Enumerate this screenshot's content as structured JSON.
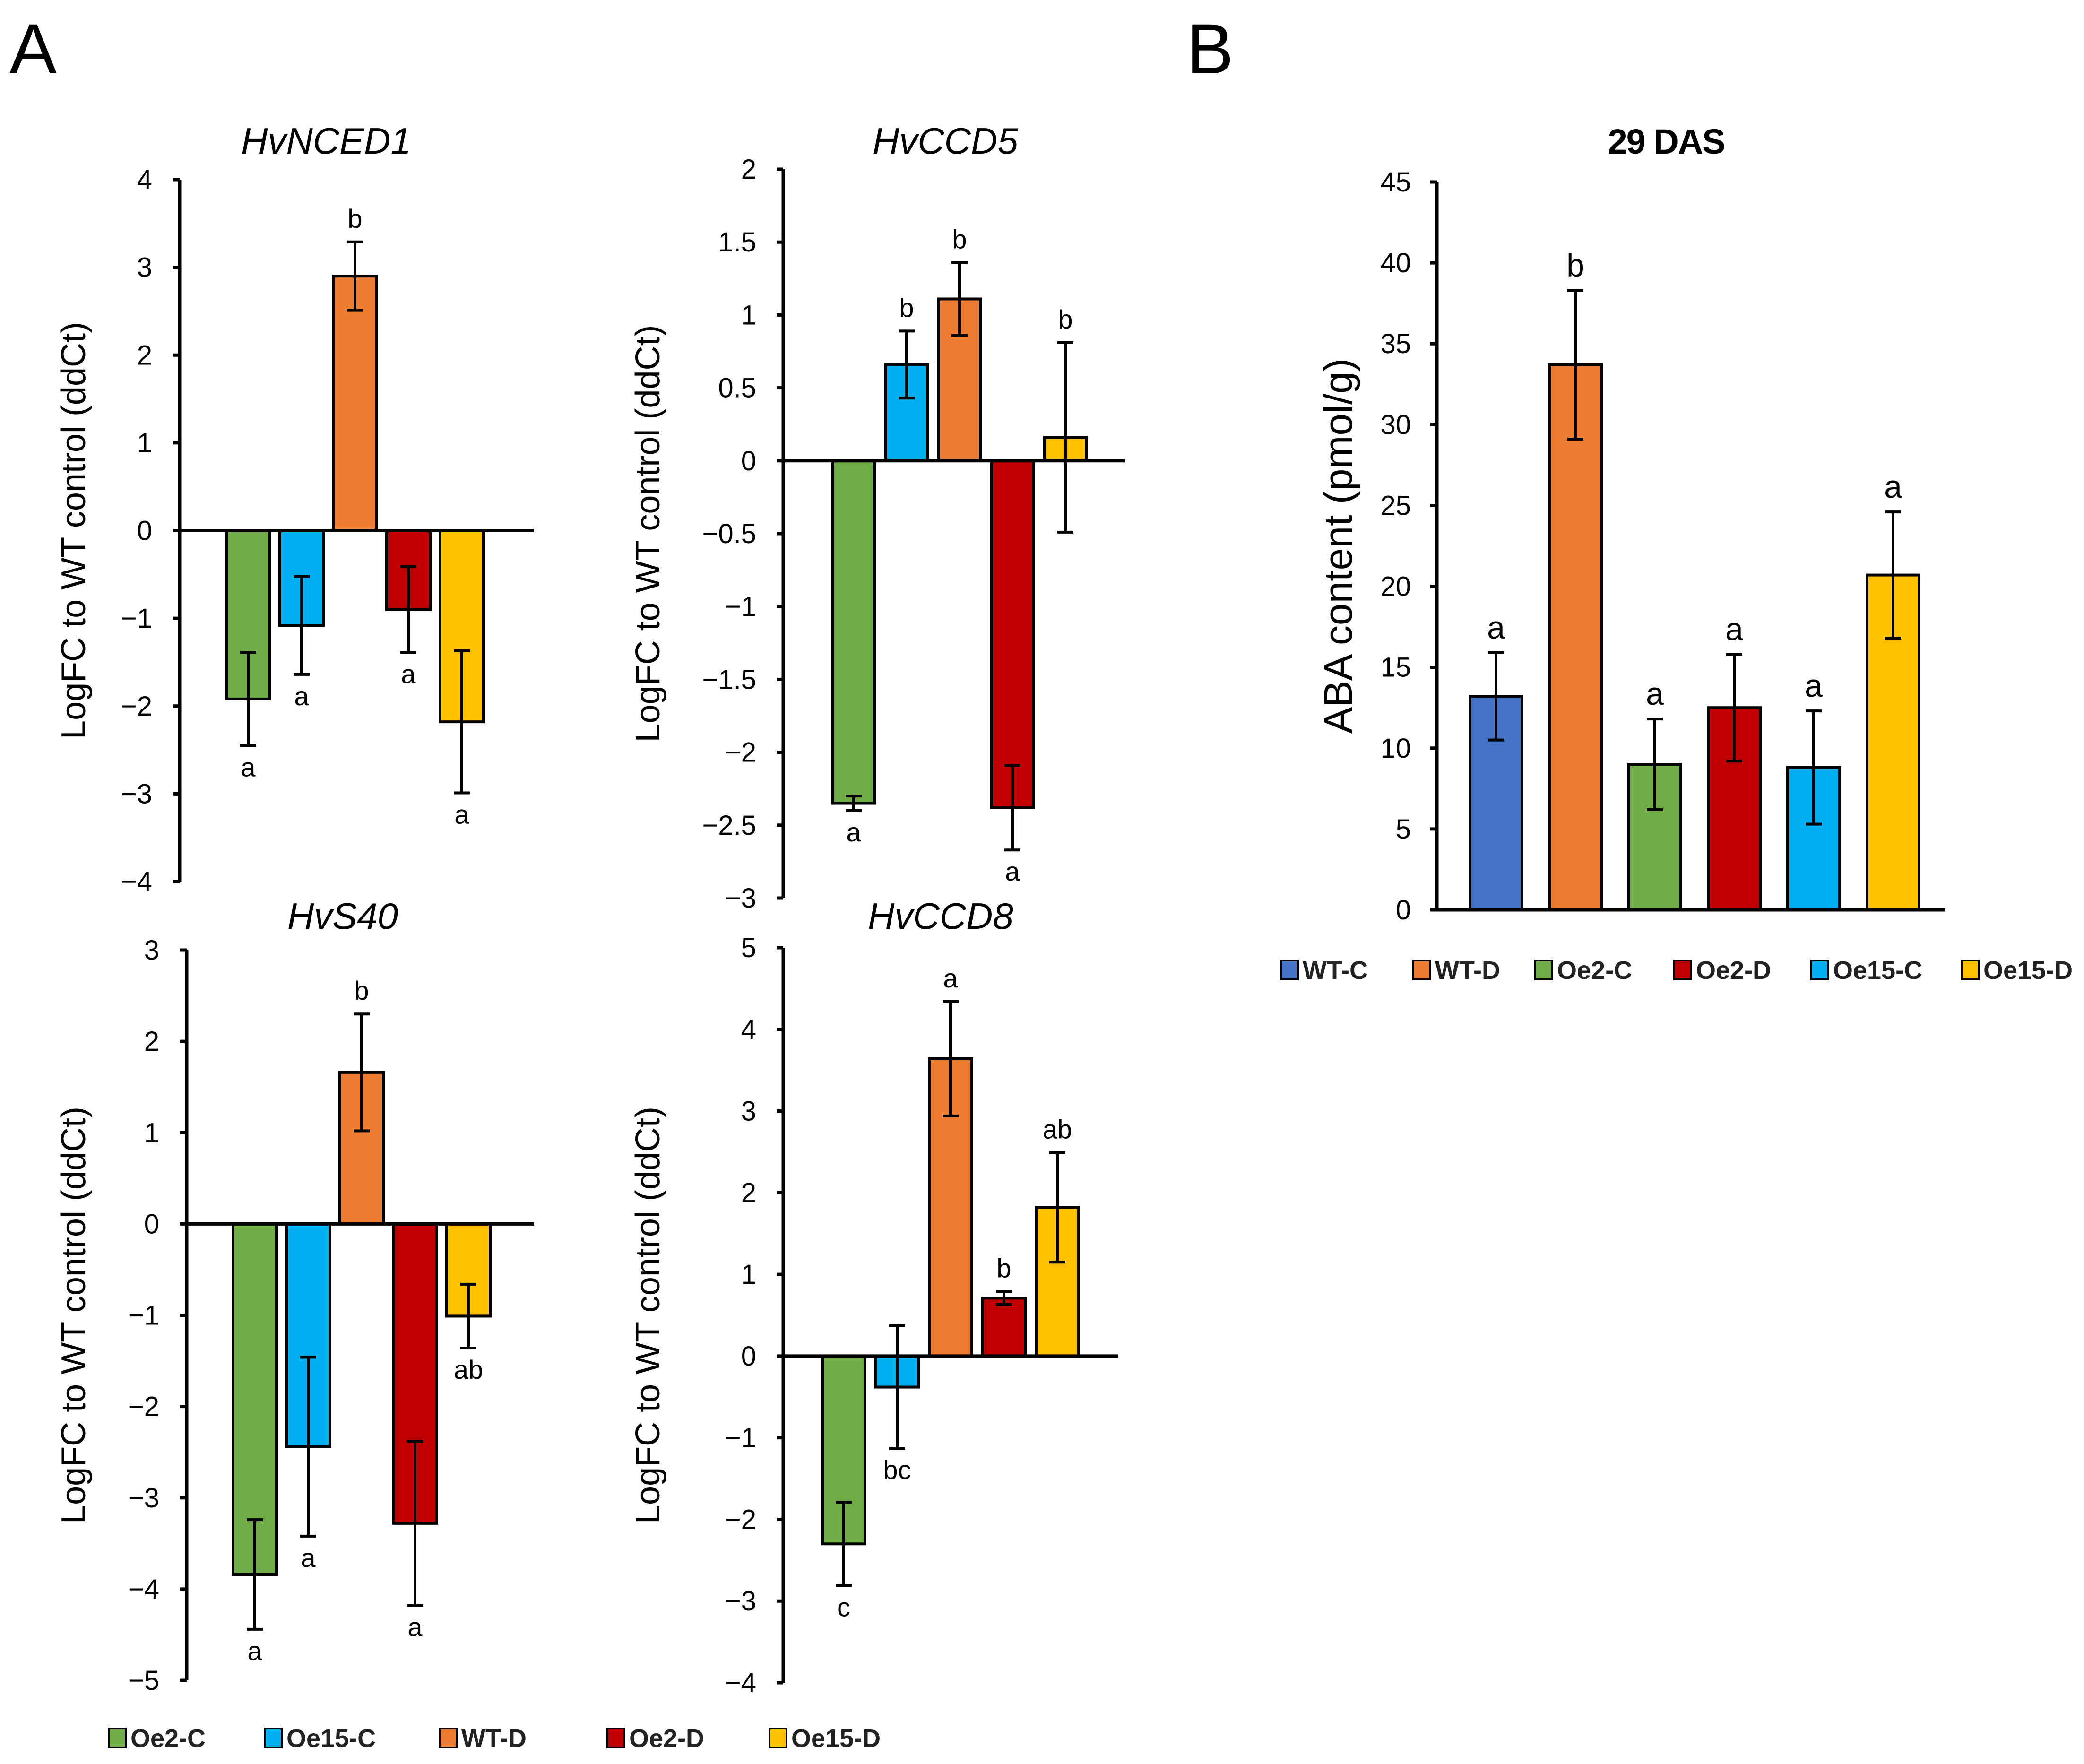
{
  "panels": {
    "a": "A",
    "b": "B"
  },
  "colors": {
    "WT-C": "#4472C4",
    "WT-D": "#ED7D31",
    "Oe2-C": "#70AD47",
    "Oe2-D": "#C00000",
    "Oe15-C": "#00B0F0",
    "Oe15-D": "#FFC000"
  },
  "legend_a": [
    "Oe2-C",
    "Oe15-C",
    "WT-D",
    "Oe2-D",
    "Oe15-D"
  ],
  "legend_b": [
    "WT-C",
    "WT-D",
    "Oe2-C",
    "Oe2-D",
    "Oe15-C",
    "Oe15-D"
  ],
  "chart_data": [
    {
      "type": "bar",
      "title": "HvNCED1",
      "ylabel": "LogFC to WT control (ddCt)",
      "ylim": [
        -4,
        4
      ],
      "yticks": [
        "4",
        "3",
        "2",
        "1",
        "0",
        "−1",
        "−2",
        "−3",
        "−4"
      ],
      "categories": [
        "Oe2-C",
        "Oe15-C",
        "WT-D",
        "Oe2-D",
        "Oe15-D"
      ],
      "values": [
        -1.92,
        -1.08,
        2.9,
        -0.9,
        -2.18
      ],
      "errors": [
        0.53,
        0.56,
        0.39,
        0.49,
        0.81
      ],
      "labels": [
        "a",
        "a",
        "b",
        "a",
        "a"
      ]
    },
    {
      "type": "bar",
      "title": "HvCCD5",
      "ylabel": "LogFC to WT control (ddCt)",
      "ylim": [
        -3,
        2
      ],
      "yticks": [
        "2",
        "1.5",
        "1",
        "0.5",
        "0",
        "−0.5",
        "−1",
        "−1.5",
        "−2",
        "−2.5",
        "−3"
      ],
      "categories": [
        "Oe2-C",
        "Oe15-C",
        "WT-D",
        "Oe2-D",
        "Oe15-D"
      ],
      "values": [
        -2.35,
        0.66,
        1.11,
        -2.38,
        0.16
      ],
      "errors": [
        0.05,
        0.23,
        0.25,
        0.29,
        0.65
      ],
      "labels": [
        "a",
        "b",
        "b",
        "a",
        "b"
      ]
    },
    {
      "type": "bar",
      "title": "HvS40",
      "ylabel": "LogFC to WT control (ddCt)",
      "ylim": [
        -5,
        3
      ],
      "yticks": [
        "3",
        "2",
        "1",
        "0",
        "−1",
        "−2",
        "−3",
        "−4",
        "−5"
      ],
      "categories": [
        "Oe2-C",
        "Oe15-C",
        "WT-D",
        "Oe2-D",
        "Oe15-D"
      ],
      "values": [
        -3.84,
        -2.44,
        1.66,
        -3.28,
        -1.01
      ],
      "errors": [
        0.6,
        0.98,
        0.64,
        0.9,
        0.35
      ],
      "labels": [
        "a",
        "a",
        "b",
        "a",
        "ab"
      ]
    },
    {
      "type": "bar",
      "title": "HvCCD8",
      "ylabel": "LogFC to WT control (ddCt)",
      "ylim": [
        -4,
        5
      ],
      "yticks": [
        "5",
        "4",
        "3",
        "2",
        "1",
        "0",
        "−1",
        "−2",
        "−3",
        "−4"
      ],
      "categories": [
        "Oe2-C",
        "Oe15-C",
        "WT-D",
        "Oe2-D",
        "Oe15-D"
      ],
      "values": [
        -2.3,
        -0.38,
        3.64,
        0.71,
        1.82
      ],
      "errors": [
        0.51,
        0.75,
        0.7,
        0.08,
        0.67
      ],
      "labels": [
        "c",
        "bc",
        "a",
        "b",
        "ab"
      ]
    },
    {
      "type": "bar",
      "title": "29 DAS",
      "ylabel": "ABA content (pmol/g)",
      "ylim": [
        0,
        45
      ],
      "yticks": [
        "45",
        "40",
        "35",
        "30",
        "25",
        "20",
        "15",
        "10",
        "5",
        "0"
      ],
      "categories": [
        "WT-C",
        "WT-D",
        "Oe2-C",
        "Oe2-D",
        "Oe15-C",
        "Oe15-D"
      ],
      "values": [
        13.2,
        33.7,
        9.0,
        12.5,
        8.8,
        20.7
      ],
      "errors": [
        2.7,
        4.6,
        2.8,
        3.3,
        3.5,
        3.9
      ],
      "labels": [
        "a",
        "b",
        "a",
        "a",
        "a",
        "a"
      ]
    }
  ]
}
